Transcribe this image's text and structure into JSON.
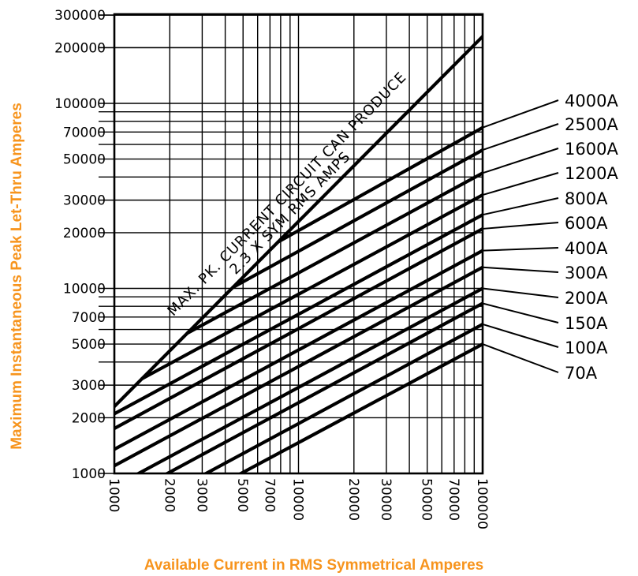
{
  "chart_data": {
    "type": "line",
    "x_scale": "log",
    "y_scale": "log",
    "xlim": [
      1000,
      100000
    ],
    "ylim": [
      1000,
      300000
    ],
    "xlabel": "Available Current in RMS Symmetrical Amperes",
    "ylabel": "Maximum Instantaneous Peak Let-Thru Amperes",
    "x_ticks": [
      "1000",
      "2000",
      "3000",
      "5000",
      "7000",
      "10000",
      "20000",
      "30000",
      "50000",
      "70000",
      "100000"
    ],
    "y_ticks": [
      "1000",
      "2000",
      "3000",
      "5000",
      "7000",
      "10000",
      "20000",
      "30000",
      "50000",
      "70000",
      "100000",
      "200000",
      "300000"
    ],
    "annotation": [
      "MAX. PK. CURRENT CIRCUIT CAN PRODUCE",
      "2.3 X SYM RMS AMPS"
    ],
    "limit_line": {
      "x": [
        1000,
        100000
      ],
      "y": [
        2300,
        230000
      ]
    },
    "series": [
      {
        "name": "4000A",
        "x": [
          1000,
          100000
        ],
        "y": [
          5700,
          74000
        ]
      },
      {
        "name": "2500A",
        "x": [
          1000,
          100000
        ],
        "y": [
          4500,
          56000
        ]
      },
      {
        "name": "1600A",
        "x": [
          1000,
          100000
        ],
        "y": [
          3500,
          42000
        ]
      },
      {
        "name": "1200A",
        "x": [
          1000,
          100000
        ],
        "y": [
          2700,
          32000
        ]
      },
      {
        "name": "800A",
        "x": [
          1000,
          100000
        ],
        "y": [
          2100,
          25000
        ]
      },
      {
        "name": "600A",
        "x": [
          1000,
          100000
        ],
        "y": [
          1750,
          21000
        ]
      },
      {
        "name": "400A",
        "x": [
          1000,
          100000
        ],
        "y": [
          1350,
          16000
        ]
      },
      {
        "name": "300A",
        "x": [
          1000,
          100000
        ],
        "y": [
          1100,
          13000
        ]
      },
      {
        "name": "200A",
        "x": [
          1000,
          100000
        ],
        "y": [
          850,
          10000
        ]
      },
      {
        "name": "150A",
        "x": [
          1000,
          100000
        ],
        "y": [
          700,
          8300
        ]
      },
      {
        "name": "100A",
        "x": [
          1000,
          100000
        ],
        "y": [
          540,
          6400
        ]
      },
      {
        "name": "70A",
        "x": [
          1000,
          100000
        ],
        "y": [
          430,
          5000
        ]
      }
    ],
    "grid": true,
    "legend": "right labels with leader lines"
  }
}
